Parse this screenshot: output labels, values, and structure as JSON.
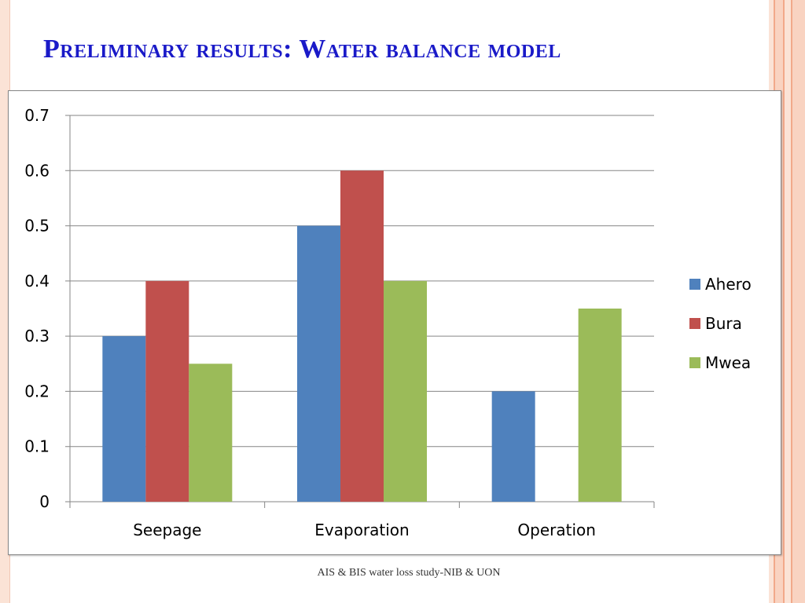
{
  "slide": {
    "title": "Preliminary results: Water balance model",
    "footer": "AIS & BIS water loss study-NIB & UON"
  },
  "theme": {
    "title_color": "#1a1ac8",
    "border_colors": [
      "#fbe3d6",
      "#f6c7b0",
      "#f2a98a"
    ]
  },
  "chart_data": {
    "type": "bar",
    "categories": [
      "Seepage",
      "Evaporation",
      "Operation"
    ],
    "series": [
      {
        "name": "Ahero",
        "color": "#4f81bd",
        "values": [
          0.3,
          0.5,
          0.2
        ]
      },
      {
        "name": "Bura",
        "color": "#c0504d",
        "values": [
          0.4,
          0.6,
          0
        ]
      },
      {
        "name": "Mwea",
        "color": "#9bbb59",
        "values": [
          0.25,
          0.4,
          0.35
        ]
      }
    ],
    "ylim": [
      0,
      0.7
    ],
    "yticks": [
      "0",
      "0.1",
      "0.2",
      "0.3",
      "0.4",
      "0.5",
      "0.6",
      "0.7"
    ],
    "title": "",
    "xlabel": "",
    "ylabel": "",
    "grid": true,
    "legend_position": "right"
  }
}
